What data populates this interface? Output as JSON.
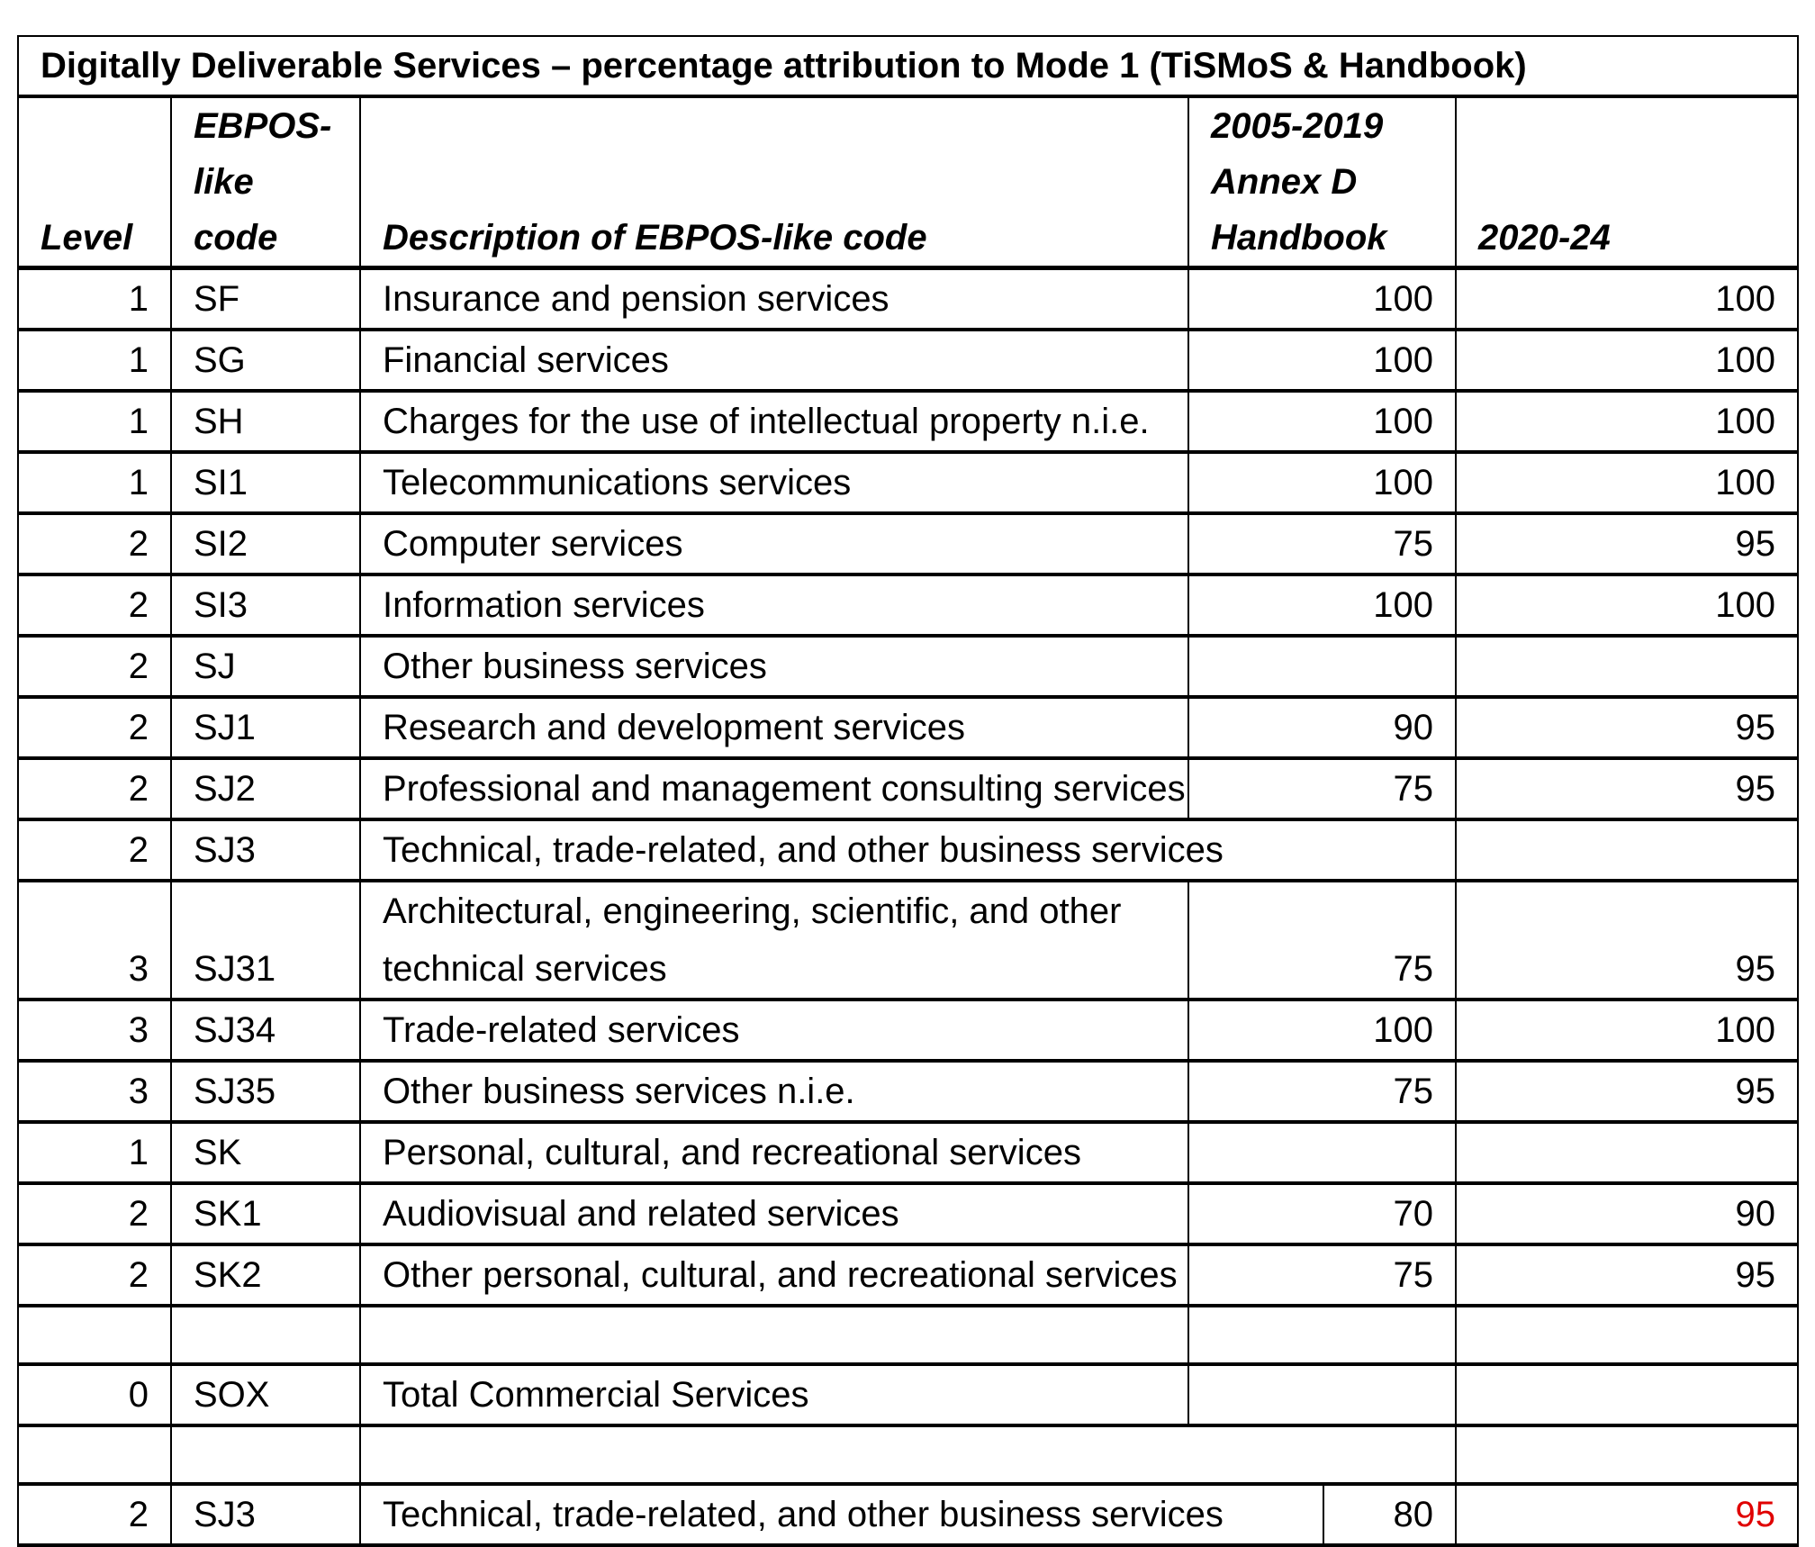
{
  "title": "Digitally Deliverable Services – percentage attribution to Mode 1 (TiSMoS & Handbook)",
  "headers": {
    "level": "Level",
    "code": "EBPOS-like code",
    "description": "Description of EBPOS-like code",
    "handbook": "2005-2019 Annex D Handbook",
    "recent": "2020-24"
  },
  "rows": [
    {
      "level": "1",
      "code": "SF",
      "description": "Insurance and pension services",
      "handbook": "100",
      "recent": "100"
    },
    {
      "level": "1",
      "code": "SG",
      "description": "Financial services",
      "handbook": "100",
      "recent": "100"
    },
    {
      "level": "1",
      "code": "SH",
      "description": "Charges for the use of intellectual property n.i.e.",
      "handbook": "100",
      "recent": "100"
    },
    {
      "level": "1",
      "code": "SI1",
      "description": "Telecommunications services",
      "handbook": "100",
      "recent": "100"
    },
    {
      "level": "2",
      "code": "SI2",
      "description": "Computer services",
      "handbook": "75",
      "recent": "95"
    },
    {
      "level": "2",
      "code": "SI3",
      "description": "Information services",
      "handbook": "100",
      "recent": "100"
    },
    {
      "level": "2",
      "code": "SJ",
      "description": "Other business services",
      "handbook": "",
      "recent": ""
    },
    {
      "level": "2",
      "code": "SJ1",
      "description": "Research and development services",
      "handbook": "90",
      "recent": "95"
    },
    {
      "level": "2",
      "code": "SJ2",
      "description": "Professional and management consulting services",
      "handbook": "75",
      "recent": "95"
    },
    {
      "level": "2",
      "code": "SJ3",
      "description": "Technical, trade-related, and other business services",
      "handbook": "",
      "recent": ""
    },
    {
      "level": "3",
      "code": "SJ31",
      "description": "Architectural, engineering, scientific, and other technical services",
      "handbook": "75",
      "recent": "95"
    },
    {
      "level": "3",
      "code": "SJ34",
      "description": "Trade-related services",
      "handbook": "100",
      "recent": "100"
    },
    {
      "level": "3",
      "code": "SJ35",
      "description": "Other business services n.i.e.",
      "handbook": "75",
      "recent": "95"
    },
    {
      "level": "1",
      "code": "SK",
      "description": "Personal, cultural, and recreational services",
      "handbook": "",
      "recent": ""
    },
    {
      "level": "2",
      "code": "SK1",
      "description": "Audiovisual and related services",
      "handbook": "70",
      "recent": "90"
    },
    {
      "level": "2",
      "code": "SK2",
      "description": "Other personal, cultural, and recreational services",
      "handbook": "75",
      "recent": "95"
    },
    {
      "level": "",
      "code": "",
      "description": "",
      "handbook": "",
      "recent": ""
    },
    {
      "level": "0",
      "code": "SOX",
      "description": "Total Commercial Services",
      "handbook": "",
      "recent": ""
    },
    {
      "level": "",
      "code": "",
      "description": "",
      "handbook": "",
      "recent": ""
    },
    {
      "level": "2",
      "code": "SJ3",
      "description": "Technical, trade-related, and other business services",
      "handbook": "80",
      "recent": "95",
      "recent_color": "#e00000"
    }
  ]
}
